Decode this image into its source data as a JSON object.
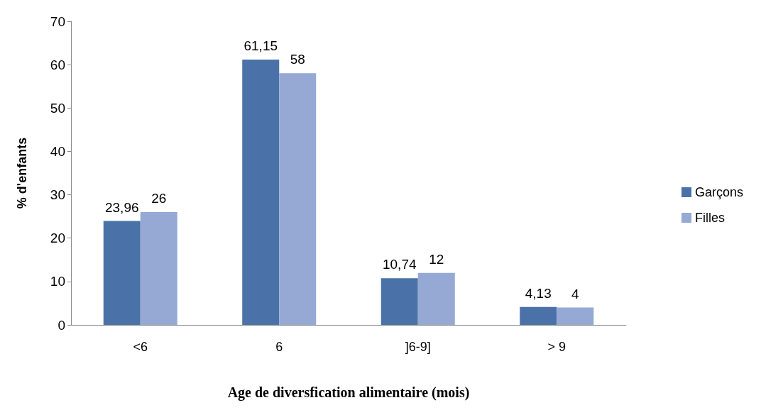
{
  "chart_data": {
    "type": "bar",
    "xlabel": "Age de diversfication alimentaire (mois)",
    "ylabel": "% d'enfants",
    "categories": [
      "<6",
      "6",
      "]6-9]",
      "> 9"
    ],
    "series": [
      {
        "name": "Garçons",
        "color": "#4a72a8",
        "values": [
          23.96,
          61.15,
          10.74,
          4.13
        ],
        "value_labels": [
          "23,96",
          "61,15",
          "10,74",
          "4,13"
        ]
      },
      {
        "name": "Filles",
        "color": "#95a9d4",
        "values": [
          26,
          58,
          12,
          4
        ],
        "value_labels": [
          "26",
          "58",
          "12",
          "4"
        ]
      }
    ],
    "ylim": [
      0,
      70
    ],
    "yticks": [
      0,
      10,
      20,
      30,
      40,
      50,
      60,
      70
    ],
    "grid": false,
    "legend": "right"
  }
}
